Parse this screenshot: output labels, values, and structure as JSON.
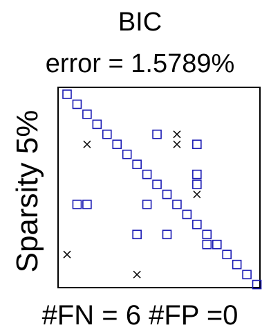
{
  "chart_data": {
    "type": "scatter",
    "title_line1": "BIC",
    "title_line2": "error = 1.5789%",
    "ylabel": "Sparsity 5%",
    "xlabel": "#FN = 6 #FP =0",
    "n": 20,
    "grid": false,
    "series": [
      {
        "name": "estimated",
        "marker": "square",
        "color": "#1a1ab4",
        "points": [
          [
            1,
            1
          ],
          [
            2,
            2
          ],
          [
            3,
            3
          ],
          [
            4,
            4
          ],
          [
            5,
            5
          ],
          [
            6,
            6
          ],
          [
            7,
            7
          ],
          [
            8,
            8
          ],
          [
            9,
            9
          ],
          [
            10,
            10
          ],
          [
            11,
            11
          ],
          [
            12,
            12
          ],
          [
            13,
            13
          ],
          [
            14,
            14
          ],
          [
            15,
            15
          ],
          [
            16,
            16
          ],
          [
            17,
            17
          ],
          [
            18,
            18
          ],
          [
            19,
            19
          ],
          [
            20,
            20
          ],
          [
            10,
            5
          ],
          [
            14,
            6
          ],
          [
            14,
            9
          ],
          [
            14,
            10
          ],
          [
            2,
            12
          ],
          [
            3,
            12
          ],
          [
            9,
            12
          ],
          [
            8,
            15
          ],
          [
            11,
            15
          ],
          [
            15,
            16
          ],
          [
            16,
            16
          ]
        ]
      },
      {
        "name": "true",
        "marker": "x",
        "color": "#000000",
        "points": [
          [
            12,
            5
          ],
          [
            12,
            6
          ],
          [
            3,
            6
          ],
          [
            14,
            11
          ],
          [
            1,
            17
          ],
          [
            8,
            19
          ]
        ]
      }
    ]
  }
}
